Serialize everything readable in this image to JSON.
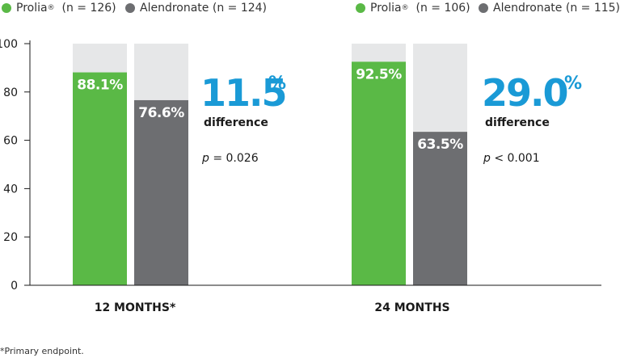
{
  "colors": {
    "prolia": "#5ab946",
    "alendronate": "#6d6e71",
    "track": "#e6e7e8",
    "accent": "#1a9ad6",
    "axis": "#1a1a1a",
    "text": "#1a1a1a"
  },
  "footnote": "*Primary endpoint.",
  "chart_data": {
    "type": "bar",
    "ylim": [
      0,
      100
    ],
    "yticks": [
      0,
      20,
      40,
      60,
      80,
      100
    ],
    "grid": false,
    "value_format": "percent_one_decimal",
    "groups": [
      {
        "category": "12 MONTHS*",
        "legend": [
          {
            "series": "prolia",
            "label": "Prolia",
            "sup": "®",
            "n": "(n = 126)"
          },
          {
            "series": "alendronate",
            "label": "Alendronate (n = 124)"
          }
        ],
        "bars": [
          {
            "series": "prolia",
            "value": 88.1,
            "label": "88.1%"
          },
          {
            "series": "alendronate",
            "value": 76.6,
            "label": "76.6%"
          }
        ],
        "difference": {
          "value": "11.5",
          "unit": "%",
          "text": "difference"
        },
        "p_value": {
          "p": "p",
          "rest": " = 0.026"
        }
      },
      {
        "category": "24 MONTHS",
        "legend": [
          {
            "series": "prolia",
            "label": "Prolia",
            "sup": "®",
            "n": "(n = 106)"
          },
          {
            "series": "alendronate",
            "label": "Alendronate (n = 115)"
          }
        ],
        "bars": [
          {
            "series": "prolia",
            "value": 92.5,
            "label": "92.5%"
          },
          {
            "series": "alendronate",
            "value": 63.5,
            "label": "63.5%"
          }
        ],
        "difference": {
          "value": "29.0",
          "unit": "%",
          "text": "difference"
        },
        "p_value": {
          "p": "p",
          "rest": " < 0.001"
        }
      }
    ]
  }
}
